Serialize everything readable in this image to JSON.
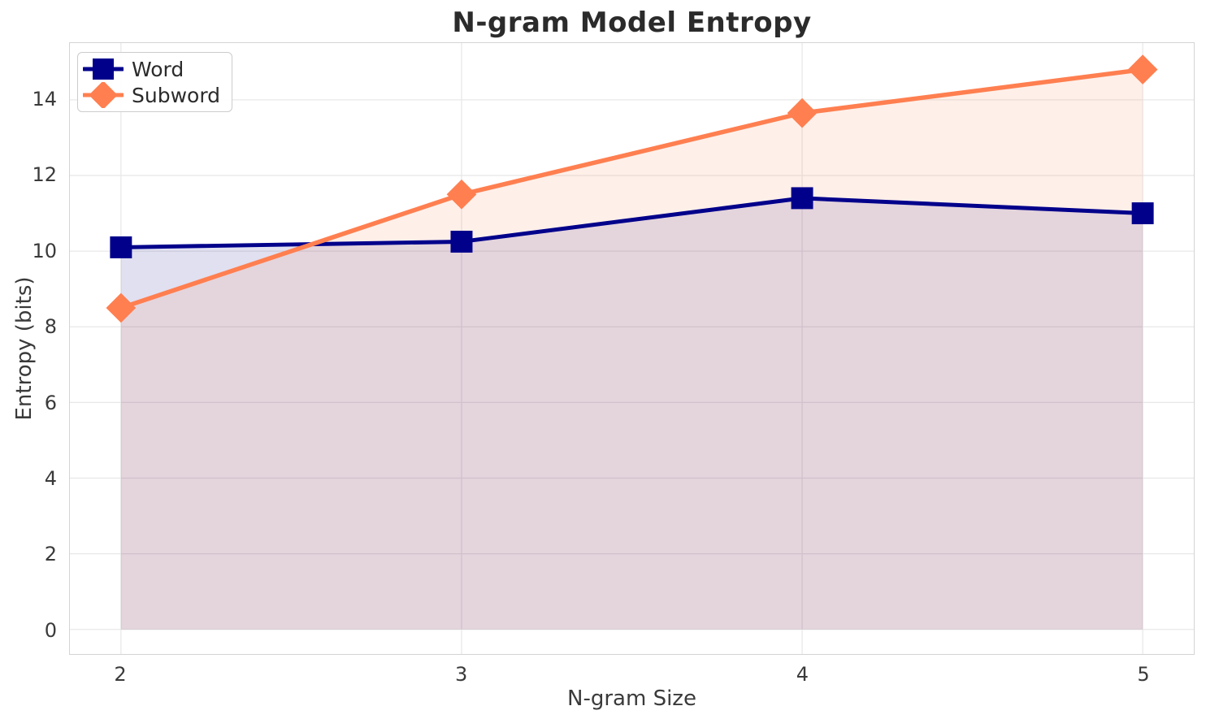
{
  "chart_data": {
    "type": "line",
    "title": "N-gram Model Entropy",
    "xlabel": "N-gram Size",
    "ylabel": "Entropy (bits)",
    "x": [
      2,
      3,
      4,
      5
    ],
    "series": [
      {
        "name": "Word",
        "values": [
          10.1,
          10.25,
          11.4,
          11.0
        ],
        "color": "#00008B",
        "marker": "square",
        "fill_color": "rgba(0,0,139,0.12)",
        "line_width": 5
      },
      {
        "name": "Subword",
        "values": [
          8.5,
          11.5,
          13.65,
          14.8
        ],
        "color": "#FF7F50",
        "marker": "diamond",
        "fill_color": "rgba(255,127,80,0.125)",
        "line_width": 5.5
      }
    ],
    "xticks": [
      2,
      3,
      4,
      5
    ],
    "yticks": [
      0,
      2,
      4,
      6,
      8,
      10,
      12,
      14
    ],
    "xlim": [
      1.85,
      5.15
    ],
    "ylim": [
      -0.65,
      15.5
    ],
    "area_fill_baseline": 0,
    "grid": true,
    "legend_position": "upper left"
  },
  "style": {
    "grid_color": "#e8e8e8",
    "spine_color": "#d4d4d4",
    "background": "#ffffff",
    "tick_color": "#3a3a3a",
    "title_color": "#2b2b2b"
  }
}
